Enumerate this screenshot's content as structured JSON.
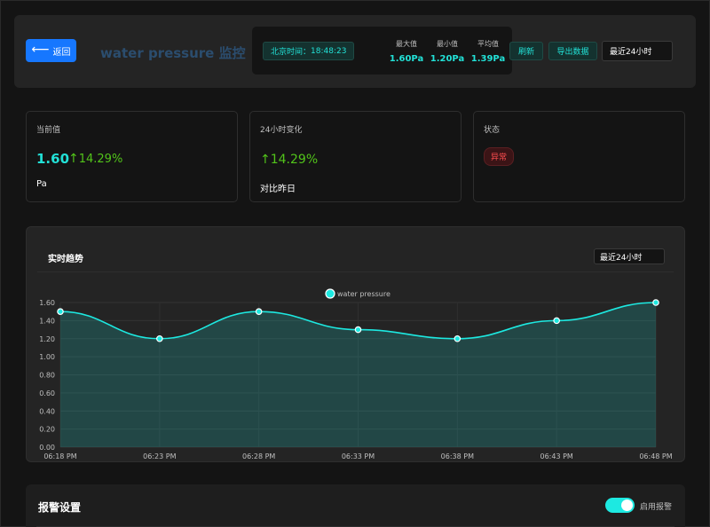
{
  "header": {
    "back_label": "返回",
    "title": "water pressure 监控",
    "clock_label": "北京时间：",
    "clock_time": "18:48:23",
    "stats": [
      {
        "label": "最大值",
        "value": "1.60Pa"
      },
      {
        "label": "最小值",
        "value": "1.20Pa"
      },
      {
        "label": "平均值",
        "value": "1.39Pa"
      }
    ],
    "refresh_label": "刷新",
    "export_label": "导出数据",
    "range_selected": "最近24小时"
  },
  "cards": {
    "current": {
      "title": "当前值",
      "value": "1.60",
      "change": "14.29%",
      "unit": "Pa"
    },
    "change24": {
      "title": "24小时变化",
      "change": "14.29%",
      "compare": "对比昨日"
    },
    "status": {
      "title": "状态",
      "badge": "异常"
    }
  },
  "trend": {
    "title": "实时趋势",
    "range_selected": "最近24小时"
  },
  "chart_data": {
    "type": "area",
    "x": [
      "06:18 PM",
      "06:23 PM",
      "06:28 PM",
      "06:33 PM",
      "06:38 PM",
      "06:43 PM",
      "06:48 PM"
    ],
    "series": [
      {
        "name": "water pressure",
        "values": [
          1.5,
          1.2,
          1.5,
          1.3,
          1.2,
          1.4,
          1.6
        ],
        "color": "#1de9e1"
      }
    ],
    "yticks": [
      "0.00",
      "0.20",
      "0.40",
      "0.60",
      "0.80",
      "1.00",
      "1.20",
      "1.40",
      "1.60"
    ],
    "ylim": [
      0,
      1.6
    ],
    "grid": true,
    "legend": "top-center"
  },
  "alarm": {
    "title": "报警设置",
    "toggle_label": "启用报警",
    "enabled": true
  },
  "colors": {
    "accent": "#22e1d7",
    "primary": "#1677ff",
    "up": "#52c41a",
    "danger": "#ff4d4f"
  }
}
